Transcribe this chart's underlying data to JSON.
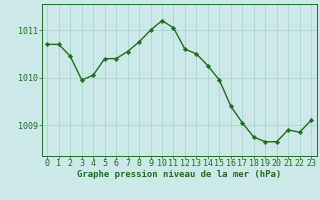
{
  "x": [
    0,
    1,
    2,
    3,
    4,
    5,
    6,
    7,
    8,
    9,
    10,
    11,
    12,
    13,
    14,
    15,
    16,
    17,
    18,
    19,
    20,
    21,
    22,
    23
  ],
  "y": [
    1010.7,
    1010.7,
    1010.45,
    1009.95,
    1010.05,
    1010.4,
    1010.4,
    1010.55,
    1010.75,
    1011.0,
    1011.2,
    1011.05,
    1010.6,
    1010.5,
    1010.25,
    1009.95,
    1009.4,
    1009.05,
    1008.75,
    1008.65,
    1008.65,
    1008.9,
    1008.85,
    1009.1
  ],
  "title": "Graphe pression niveau de la mer (hPa)",
  "xlim": [
    -0.5,
    23.5
  ],
  "ylim": [
    1008.35,
    1011.55
  ],
  "yticks": [
    1009,
    1010,
    1011
  ],
  "xticks": [
    0,
    1,
    2,
    3,
    4,
    5,
    6,
    7,
    8,
    9,
    10,
    11,
    12,
    13,
    14,
    15,
    16,
    17,
    18,
    19,
    20,
    21,
    22,
    23
  ],
  "line_color": "#1e6e1e",
  "marker_color": "#1e6e1e",
  "bg_color": "#cce8e8",
  "grid_color": "#aad4d4",
  "title_color": "#1e6e1e",
  "title_fontsize": 6.5,
  "tick_fontsize": 6.0,
  "tick_color": "#1e6e1e"
}
